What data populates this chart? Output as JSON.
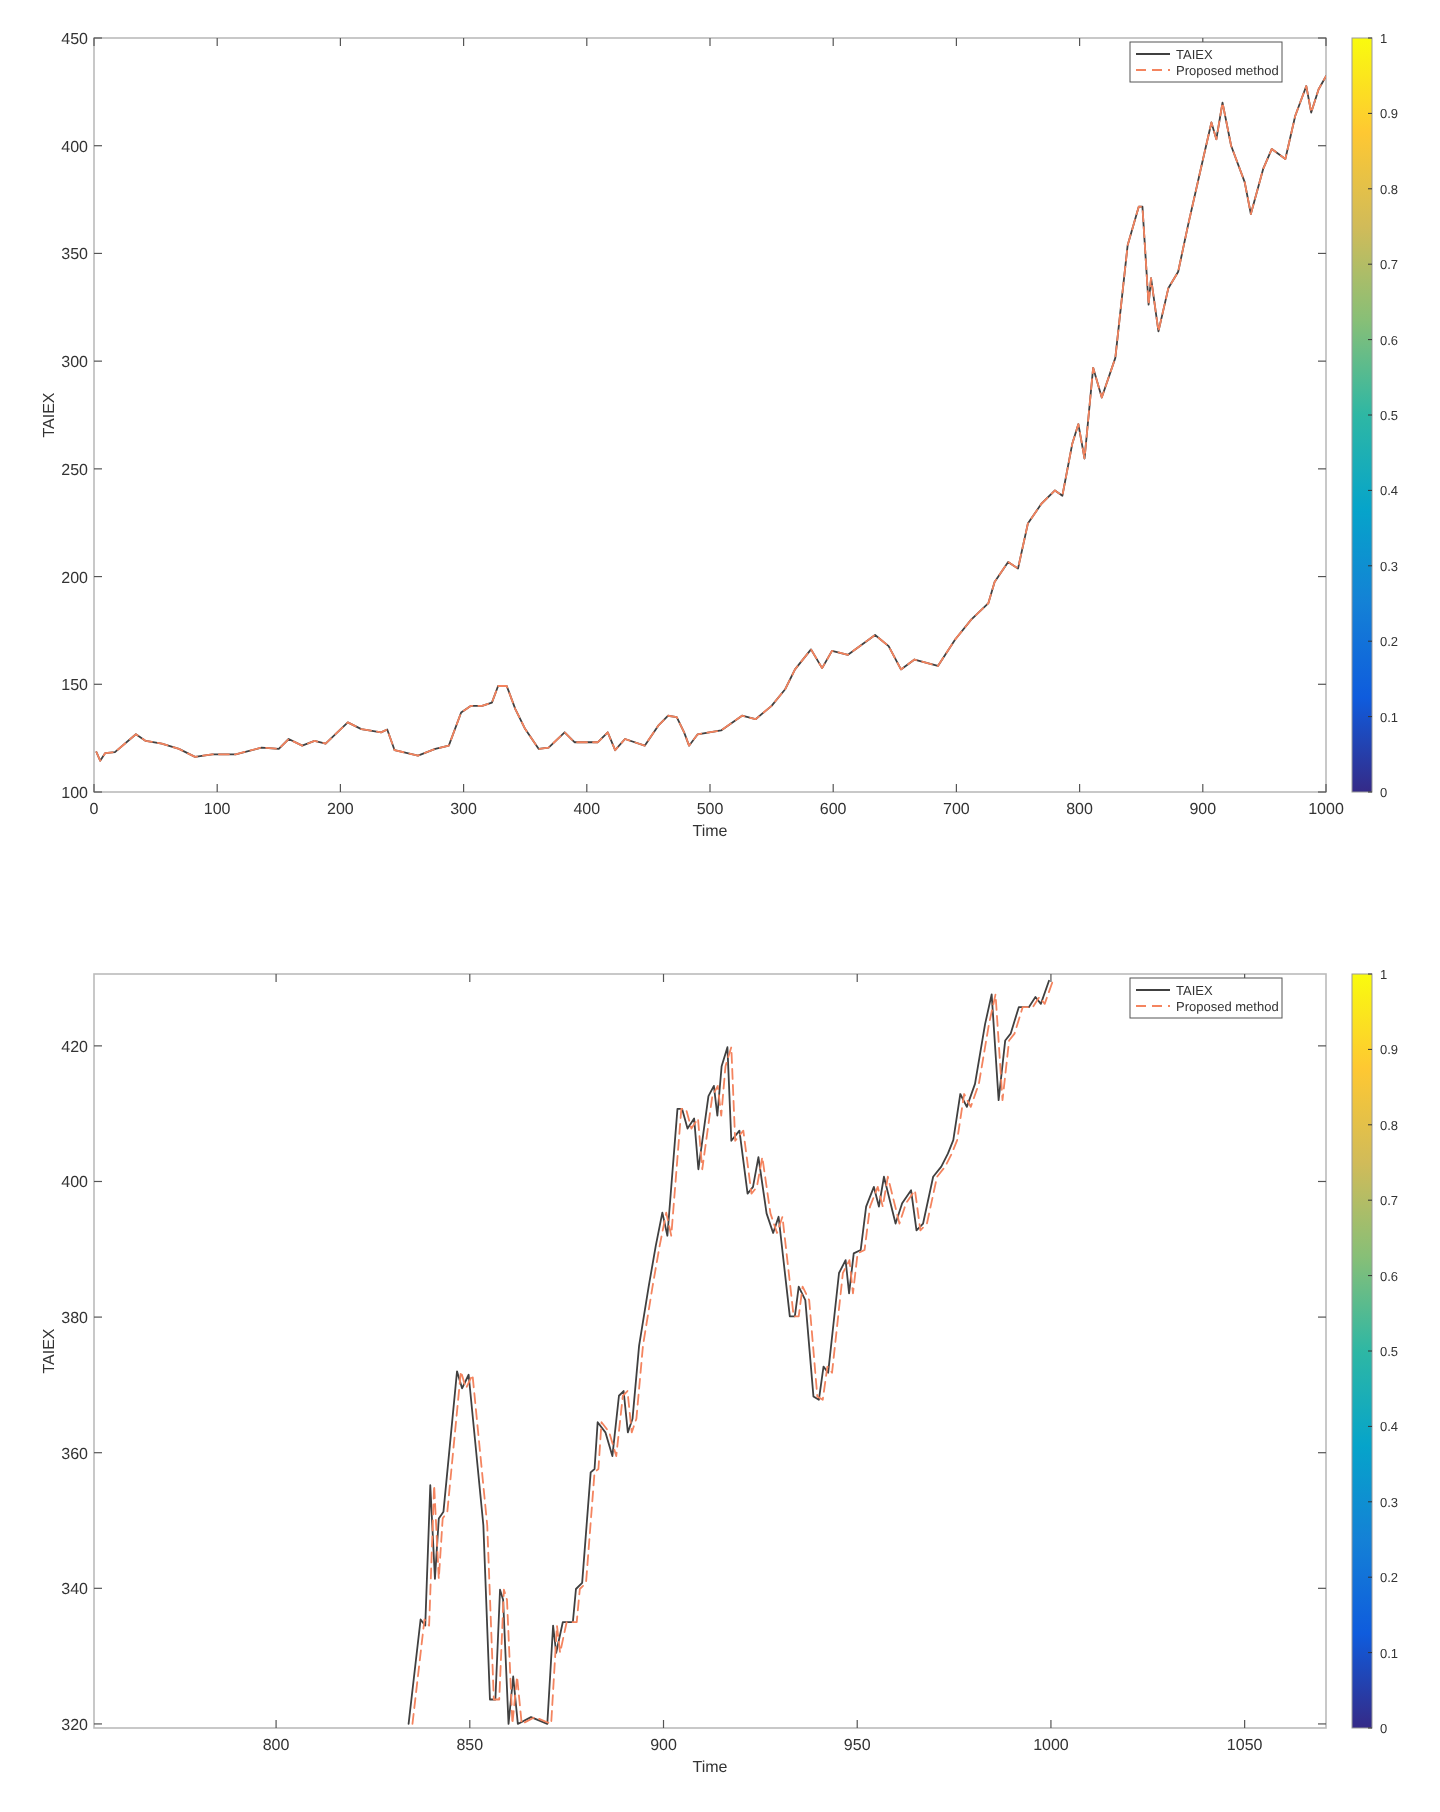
{
  "chart_data": [
    {
      "type": "line",
      "xlabel": "Time",
      "ylabel": "TAIEX",
      "xlim": [
        0,
        1000
      ],
      "ylim": [
        100,
        450
      ],
      "xticks": [
        0,
        100,
        200,
        300,
        400,
        500,
        600,
        700,
        800,
        900,
        1000
      ],
      "yticks": [
        100,
        150,
        200,
        250,
        300,
        350,
        400,
        450
      ],
      "legend": "top right",
      "clim": [
        0,
        1
      ],
      "cticks": [
        0,
        0.1,
        0.2,
        0.3,
        0.4,
        0.5,
        0.6,
        0.7,
        0.8,
        0.9,
        1
      ],
      "x": [
        2,
        5,
        9,
        17,
        34,
        42,
        55,
        69,
        82,
        96,
        115,
        136,
        150,
        158,
        169,
        179,
        188,
        206,
        217,
        233,
        238,
        244,
        263,
        277,
        288,
        298,
        306,
        315,
        323,
        328,
        335,
        342,
        350,
        361,
        369,
        382,
        390,
        409,
        417,
        423,
        431,
        447,
        458,
        466,
        473,
        479,
        483,
        490,
        509,
        526,
        537,
        550,
        561,
        569,
        582,
        591,
        599,
        612,
        634,
        645,
        655,
        666,
        685,
        699,
        712,
        726,
        731,
        742,
        750,
        758,
        769,
        780,
        786,
        794,
        799,
        804,
        811,
        818,
        829,
        839,
        848,
        851,
        856,
        858,
        864,
        872,
        880,
        888,
        899,
        907,
        911,
        916,
        923,
        934,
        939,
        949,
        956,
        967,
        975,
        984,
        988,
        994,
        1000
      ],
      "series": [
        {
          "name": "TAIEX",
          "color": "#404040",
          "line_style": "solid",
          "values": [
            118.5,
            114.5,
            118,
            118.5,
            126.8,
            123.7,
            122.5,
            120,
            116.3,
            117.5,
            117.5,
            120.6,
            120,
            124.6,
            121.5,
            123.7,
            122.5,
            132.3,
            129.2,
            127.7,
            129,
            119.4,
            116.9,
            120,
            121.5,
            136.9,
            140,
            140,
            141.5,
            149.2,
            149.2,
            138.5,
            129.2,
            120,
            120.6,
            127.7,
            123.1,
            123.1,
            127.7,
            119.4,
            124.6,
            121.5,
            130.8,
            135.4,
            134.8,
            127.7,
            121.5,
            126.8,
            128.6,
            135.4,
            133.8,
            140,
            147.7,
            156.9,
            166.2,
            157.5,
            165.5,
            163.7,
            172.9,
            167.7,
            156.9,
            161.5,
            158.5,
            170.8,
            180,
            187.7,
            197.5,
            206.8,
            203.7,
            224.6,
            233.8,
            240,
            237.5,
            261.5,
            270.8,
            254.8,
            296.9,
            283.1,
            301.5,
            353.8,
            371.7,
            371.7,
            326.2,
            338.5,
            313.8,
            333.8,
            341.5,
            363,
            390.8,
            410.8,
            403,
            420,
            400,
            383.1,
            368.3,
            389.2,
            398.5,
            393.8,
            413.8,
            427.7,
            415.4,
            426.2,
            432.3
          ]
        },
        {
          "name": "Proposed method",
          "color": "#f4845f",
          "line_style": "dashed",
          "values": [
            118.5,
            114.5,
            118,
            118.5,
            126.8,
            123.7,
            122.5,
            120,
            116.3,
            117.5,
            117.5,
            120.6,
            120,
            124.6,
            121.5,
            123.7,
            122.5,
            132.3,
            129.2,
            127.7,
            129,
            119.4,
            116.9,
            120,
            121.5,
            136.9,
            140,
            140,
            141.5,
            149.2,
            149.2,
            138.5,
            129.2,
            120,
            120.6,
            127.7,
            123.1,
            123.1,
            127.7,
            119.4,
            124.6,
            121.5,
            130.8,
            135.4,
            134.8,
            127.7,
            121.5,
            126.8,
            128.6,
            135.4,
            133.8,
            140,
            147.7,
            156.9,
            166.2,
            157.5,
            165.5,
            163.7,
            172.9,
            167.7,
            156.9,
            161.5,
            158.5,
            170.8,
            180,
            187.7,
            197.5,
            206.8,
            203.7,
            224.6,
            233.8,
            240,
            237.5,
            261.5,
            270.8,
            254.8,
            296.9,
            283.1,
            301.5,
            353.8,
            371.7,
            371.7,
            326.2,
            338.5,
            313.8,
            333.8,
            341.5,
            363,
            390.8,
            410.8,
            403,
            420,
            400,
            383.1,
            368.3,
            389.2,
            398.5,
            393.8,
            413.8,
            427.7,
            415.4,
            426.2,
            432.3
          ]
        }
      ]
    },
    {
      "type": "line",
      "xlabel": "Time",
      "ylabel": "TAIEX",
      "xlim": [
        753,
        1071
      ],
      "ylim": [
        319.4,
        430.6
      ],
      "xticks": [
        800,
        850,
        900,
        950,
        1000,
        1050
      ],
      "yticks": [
        320,
        340,
        360,
        380,
        400,
        420
      ],
      "legend": "top right",
      "clim": [
        0,
        1
      ],
      "cticks": [
        0,
        0.1,
        0.2,
        0.3,
        0.4,
        0.5,
        0.6,
        0.7,
        0.8,
        0.9,
        1
      ],
      "series": [
        {
          "name": "TAIEX",
          "color": "#404040",
          "line_style": "solid",
          "x": [
            834.2,
            837.3,
            838.5,
            839.8,
            841,
            842,
            843.2,
            846.7,
            848,
            849.7,
            853.5,
            855.2,
            856.6,
            857.8,
            858.6,
            860,
            861.2,
            862.4,
            865.8,
            870,
            871.5,
            872.3,
            874,
            876.6,
            877.4,
            879,
            881.2,
            882.2,
            883,
            885,
            886.8,
            888.5,
            889.7,
            890.8,
            892,
            893.7,
            896.2,
            898,
            899.7,
            901,
            903.6,
            904.8,
            906.2,
            907.9,
            909,
            911.6,
            913,
            913.9,
            915,
            916.5,
            917.5,
            919.6,
            921.7,
            923.1,
            924.5,
            926.6,
            928.3,
            929.7,
            932.6,
            933.9,
            934.9,
            936.6,
            938.7,
            940.1,
            941.3,
            942.5,
            945.3,
            947,
            947.9,
            949.1,
            950.9,
            952.3,
            954.3,
            955.6,
            956.9,
            959.9,
            961.6,
            963.9,
            965.3,
            967,
            969.6,
            971.7,
            973.4,
            974.8,
            976.6,
            978.3,
            980.4,
            983,
            984.7,
            986.5,
            988.2,
            989.6,
            991.7,
            994.3,
            996,
            997.4,
            999.5
          ],
          "values": [
            320,
            335.4,
            334.5,
            355.2,
            341.4,
            350.3,
            351.3,
            372,
            369.5,
            371.5,
            349.3,
            323.6,
            323.6,
            339.8,
            338.3,
            320,
            327,
            320,
            321,
            320,
            334.5,
            330.5,
            335,
            335,
            339.9,
            340.8,
            357.1,
            357.6,
            364.5,
            363,
            359.5,
            368.4,
            369.1,
            363,
            365,
            375.8,
            384.6,
            390.5,
            395.4,
            392,
            410.7,
            410.7,
            407.8,
            409.3,
            401.8,
            412.6,
            414.1,
            409.7,
            417,
            419.8,
            406,
            407.5,
            398.2,
            399.2,
            403.6,
            395.3,
            392.4,
            394.8,
            380.1,
            380.1,
            384.5,
            382.5,
            368.3,
            367.8,
            372.7,
            371.8,
            386.5,
            388.4,
            383.5,
            389.4,
            389.9,
            396.3,
            399.2,
            396.3,
            400.7,
            393.8,
            396.8,
            398.7,
            392.8,
            393.8,
            400.7,
            402.2,
            404.1,
            406.1,
            412.9,
            411,
            414.4,
            423.2,
            427.6,
            412,
            420.8,
            421.8,
            425.7,
            425.7,
            427.2,
            426.2,
            429.6
          ]
        },
        {
          "name": "Proposed method",
          "color": "#f4845f",
          "line_style": "dashed",
          "x": [
            835.2,
            838.3,
            839.5,
            840.8,
            842,
            843,
            844.2,
            847.7,
            849,
            850.7,
            854.5,
            856.2,
            857.6,
            858.8,
            859.6,
            861,
            862.2,
            863.4,
            866.8,
            871,
            872.5,
            873.3,
            875,
            877.6,
            878.4,
            880,
            882.2,
            883.2,
            884,
            886,
            887.8,
            889.5,
            890.7,
            891.8,
            893,
            894.7,
            897.2,
            899,
            900.7,
            902,
            904.6,
            905.8,
            907.2,
            908.9,
            910,
            912.6,
            914,
            914.9,
            916,
            917.5,
            918.5,
            920.6,
            922.7,
            924.1,
            925.5,
            927.6,
            929.3,
            930.7,
            933.6,
            934.9,
            935.9,
            937.6,
            939.7,
            941.1,
            942.3,
            943.5,
            946.3,
            948,
            948.9,
            950.1,
            951.9,
            953.3,
            955.3,
            956.6,
            957.9,
            960.9,
            962.6,
            964.9,
            966.3,
            968,
            970.6,
            972.7,
            974.4,
            975.8,
            977.6,
            979.3,
            981.4,
            984,
            985.7,
            987.5,
            989.2,
            990.6,
            992.7,
            995.3,
            997,
            998.4,
            1000.5
          ],
          "values": [
            320,
            335.4,
            334.5,
            355.2,
            341.4,
            350.3,
            351.3,
            372,
            369.5,
            371.5,
            349.3,
            323.6,
            323.6,
            339.8,
            338.3,
            320,
            327,
            320,
            321,
            320,
            334.5,
            330.5,
            335,
            335,
            339.9,
            340.8,
            357.1,
            357.6,
            364.5,
            363,
            359.5,
            368.4,
            369.1,
            363,
            365,
            375.8,
            384.6,
            390.5,
            395.4,
            392,
            410.7,
            410.7,
            407.8,
            409.3,
            401.8,
            412.6,
            414.1,
            409.7,
            417,
            419.8,
            406,
            407.5,
            398.2,
            399.2,
            403.6,
            395.3,
            392.4,
            394.8,
            380.1,
            380.1,
            384.5,
            382.5,
            368.3,
            367.8,
            372.7,
            371.8,
            386.5,
            388.4,
            383.5,
            389.4,
            389.9,
            396.3,
            399.2,
            396.3,
            400.7,
            393.8,
            396.8,
            398.7,
            392.8,
            393.8,
            400.7,
            402.2,
            404.1,
            406.1,
            412.9,
            411,
            414.4,
            423.2,
            427.6,
            412,
            420.8,
            421.8,
            425.7,
            425.7,
            427.2,
            426.2,
            429.6
          ]
        }
      ]
    }
  ]
}
